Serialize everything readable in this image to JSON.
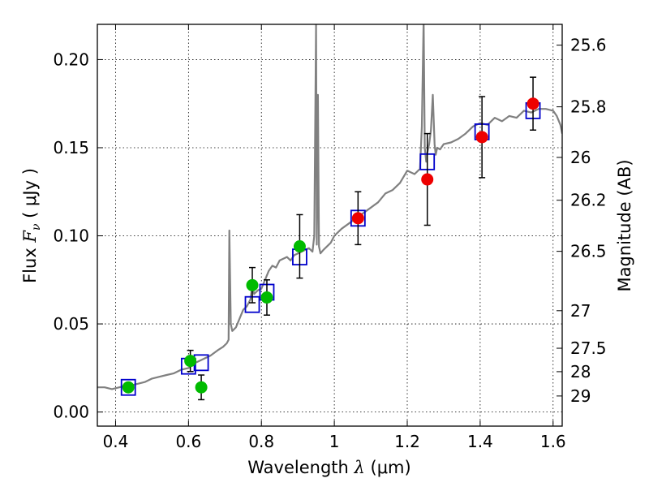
{
  "chart_data": {
    "type": "scatter",
    "xlabel_text": "Wavelength  ",
    "xlabel_math": "λ",
    "xlabel_unit": " (μm)",
    "ylabel_text": "Flux  ",
    "ylabel_math": "F",
    "ylabel_sub": "ν",
    "ylabel_unit": "  ( μJy )",
    "y2label": "Magnitude (AB)",
    "xlim": [
      0.35,
      1.625
    ],
    "ylim": [
      -0.008,
      0.22
    ],
    "grid": true,
    "xticks": [
      {
        "v": 0.4,
        "label": "0.4"
      },
      {
        "v": 0.6,
        "label": "0.6"
      },
      {
        "v": 0.8,
        "label": "0.8"
      },
      {
        "v": 1.0,
        "label": "1"
      },
      {
        "v": 1.2,
        "label": "1.2"
      },
      {
        "v": 1.4,
        "label": "1.4"
      },
      {
        "v": 1.6,
        "label": "1.6"
      }
    ],
    "yticks": [
      {
        "v": 0.0,
        "label": "0.00"
      },
      {
        "v": 0.05,
        "label": "0.05"
      },
      {
        "v": 0.1,
        "label": "0.10"
      },
      {
        "v": 0.15,
        "label": "0.15"
      },
      {
        "v": 0.2,
        "label": "0.20"
      }
    ],
    "magticks": [
      {
        "v": 0.2082,
        "label": "25.6"
      },
      {
        "v": 0.1732,
        "label": "25.8"
      },
      {
        "v": 0.1445,
        "label": "26"
      },
      {
        "v": 0.1202,
        "label": "26.2"
      },
      {
        "v": 0.0912,
        "label": "26.5"
      },
      {
        "v": 0.0575,
        "label": "27"
      },
      {
        "v": 0.0362,
        "label": "27.5"
      },
      {
        "v": 0.0229,
        "label": "28"
      },
      {
        "v": 0.0091,
        "label": "29"
      }
    ],
    "model_spectrum": {
      "color": "#808080",
      "x": [
        0.35,
        0.37,
        0.39,
        0.41,
        0.43,
        0.44,
        0.46,
        0.48,
        0.5,
        0.52,
        0.54,
        0.56,
        0.58,
        0.6,
        0.62,
        0.64,
        0.66,
        0.68,
        0.695,
        0.7,
        0.705,
        0.71,
        0.712,
        0.716,
        0.72,
        0.73,
        0.74,
        0.75,
        0.76,
        0.77,
        0.775,
        0.78,
        0.79,
        0.8,
        0.81,
        0.82,
        0.83,
        0.84,
        0.85,
        0.86,
        0.87,
        0.88,
        0.89,
        0.9,
        0.91,
        0.92,
        0.93,
        0.94,
        0.945,
        0.95,
        0.952,
        0.955,
        0.958,
        0.962,
        0.97,
        0.98,
        0.99,
        1.0,
        1.02,
        1.04,
        1.06,
        1.08,
        1.1,
        1.12,
        1.14,
        1.16,
        1.18,
        1.2,
        1.22,
        1.235,
        1.24,
        1.245,
        1.248,
        1.25,
        1.252,
        1.255,
        1.26,
        1.265,
        1.27,
        1.275,
        1.278,
        1.282,
        1.29,
        1.3,
        1.32,
        1.34,
        1.36,
        1.38,
        1.4,
        1.42,
        1.44,
        1.46,
        1.48,
        1.5,
        1.52,
        1.54,
        1.56,
        1.58,
        1.6,
        1.61,
        1.62,
        1.625
      ],
      "y": [
        0.014,
        0.014,
        0.013,
        0.014,
        0.015,
        0.015,
        0.016,
        0.017,
        0.019,
        0.02,
        0.021,
        0.022,
        0.024,
        0.025,
        0.028,
        0.03,
        0.032,
        0.035,
        0.037,
        0.038,
        0.039,
        0.041,
        0.103,
        0.05,
        0.046,
        0.048,
        0.053,
        0.058,
        0.06,
        0.064,
        0.072,
        0.067,
        0.069,
        0.07,
        0.075,
        0.08,
        0.083,
        0.082,
        0.086,
        0.087,
        0.088,
        0.086,
        0.089,
        0.09,
        0.091,
        0.092,
        0.093,
        0.091,
        0.1,
        0.22,
        0.095,
        0.18,
        0.094,
        0.09,
        0.092,
        0.094,
        0.096,
        0.1,
        0.104,
        0.107,
        0.11,
        0.113,
        0.116,
        0.119,
        0.124,
        0.126,
        0.13,
        0.137,
        0.135,
        0.138,
        0.162,
        0.223,
        0.15,
        0.146,
        0.142,
        0.147,
        0.152,
        0.16,
        0.18,
        0.152,
        0.146,
        0.15,
        0.149,
        0.152,
        0.153,
        0.155,
        0.158,
        0.162,
        0.164,
        0.163,
        0.167,
        0.165,
        0.168,
        0.167,
        0.171,
        0.17,
        0.172,
        0.172,
        0.171,
        0.168,
        0.163,
        0.158
      ]
    },
    "model_photometry": {
      "color": "#0000cc",
      "marker": "square",
      "x": [
        0.435,
        0.6,
        0.635,
        0.775,
        0.815,
        0.905,
        1.065,
        1.255,
        1.405,
        1.545
      ],
      "y": [
        0.014,
        0.026,
        0.028,
        0.061,
        0.068,
        0.088,
        0.11,
        0.142,
        0.159,
        0.171
      ]
    },
    "observed_green": {
      "color": "#00bb00",
      "marker": "circle",
      "x": [
        0.435,
        0.605,
        0.635,
        0.775,
        0.815,
        0.905
      ],
      "y": [
        0.014,
        0.029,
        0.014,
        0.072,
        0.065,
        0.094
      ],
      "err": [
        0,
        0.006,
        0.007,
        0.01,
        0.01,
        0.018
      ]
    },
    "observed_red": {
      "color": "#ee0000",
      "marker": "circle",
      "x": [
        1.065,
        1.255,
        1.405,
        1.545
      ],
      "y": [
        0.11,
        0.132,
        0.156,
        0.175
      ],
      "err": [
        0.015,
        0.026,
        0.023,
        0.015
      ]
    }
  }
}
